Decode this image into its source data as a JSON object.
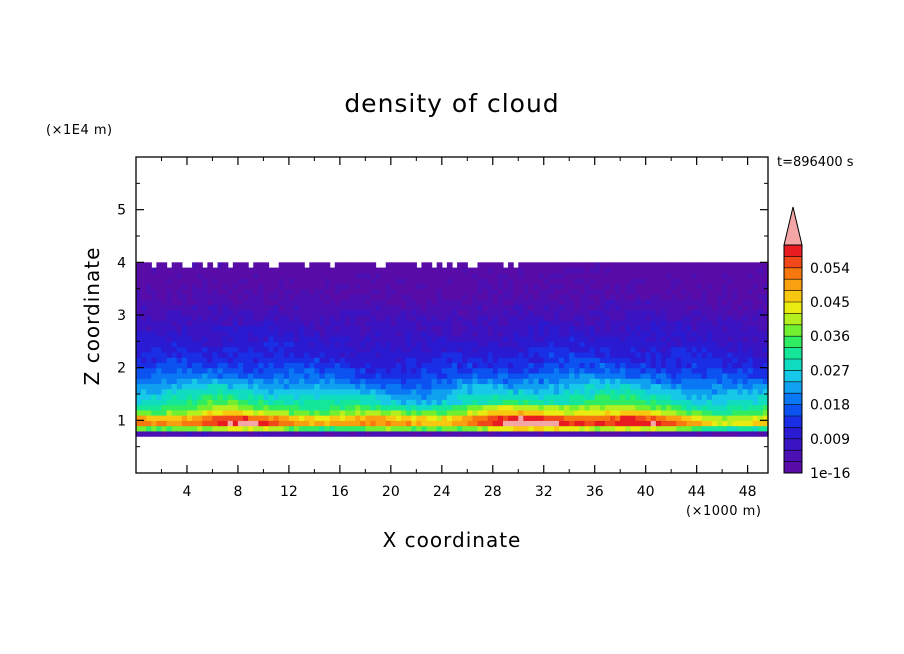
{
  "chart_data": {
    "type": "heatmap",
    "title": "density of cloud",
    "xlabel": "X coordinate",
    "ylabel": "Z coordinate",
    "x_unit": "(×1000 m)",
    "y_unit": "(×1E4 m)",
    "time_label": "t=896400 s",
    "xlim": [
      0,
      49.6
    ],
    "ylim": [
      0,
      6
    ],
    "x_ticks": [
      4,
      8,
      12,
      16,
      20,
      24,
      28,
      32,
      36,
      40,
      44,
      48
    ],
    "y_ticks": [
      1,
      2,
      3,
      4,
      5
    ],
    "colorbar": {
      "labels": [
        {
          "value": 1e-16,
          "text": "1e-16"
        },
        {
          "value": 0.009,
          "text": "0.009"
        },
        {
          "value": 0.018,
          "text": "0.018"
        },
        {
          "value": 0.027,
          "text": "0.027"
        },
        {
          "value": 0.036,
          "text": "0.036"
        },
        {
          "value": 0.045,
          "text": "0.045"
        },
        {
          "value": 0.054,
          "text": "0.054"
        }
      ],
      "levels": [
        0,
        0.003,
        0.006,
        0.009,
        0.012,
        0.015,
        0.018,
        0.021,
        0.024,
        0.027,
        0.03,
        0.033,
        0.036,
        0.039,
        0.042,
        0.045,
        0.048,
        0.051,
        0.054,
        0.057,
        0.06
      ],
      "colors": [
        "#5a0ca8",
        "#4b10b4",
        "#3a14c2",
        "#2a1ad2",
        "#1a2ee6",
        "#0c52f0",
        "#0a78f4",
        "#10a0f0",
        "#18c8e8",
        "#10dcc0",
        "#14e69a",
        "#30ec60",
        "#70f030",
        "#b4f020",
        "#e8ec10",
        "#f8c810",
        "#f8a010",
        "#f87810",
        "#f04818",
        "#e81c20"
      ],
      "extend_color": "#f4a6a6"
    },
    "field_profile": [
      {
        "z": 0.7,
        "value": 0
      },
      {
        "z": 0.75,
        "value": 0.004
      },
      {
        "z": 0.82,
        "value": 0.03
      },
      {
        "z": 0.92,
        "value": 0.05
      },
      {
        "z": 1.0,
        "value": 0.052
      },
      {
        "z": 1.1,
        "value": 0.042
      },
      {
        "z": 1.2,
        "value": 0.034
      },
      {
        "z": 1.35,
        "value": 0.03
      },
      {
        "z": 1.5,
        "value": 0.026
      },
      {
        "z": 1.7,
        "value": 0.021
      },
      {
        "z": 1.9,
        "value": 0.016
      },
      {
        "z": 2.1,
        "value": 0.013
      },
      {
        "z": 2.4,
        "value": 0.01
      },
      {
        "z": 2.8,
        "value": 0.007
      },
      {
        "z": 3.2,
        "value": 0.004
      },
      {
        "z": 3.6,
        "value": 0.002
      },
      {
        "z": 4.0,
        "value": 0.001
      },
      {
        "z": 4.05,
        "value": 0
      }
    ]
  }
}
